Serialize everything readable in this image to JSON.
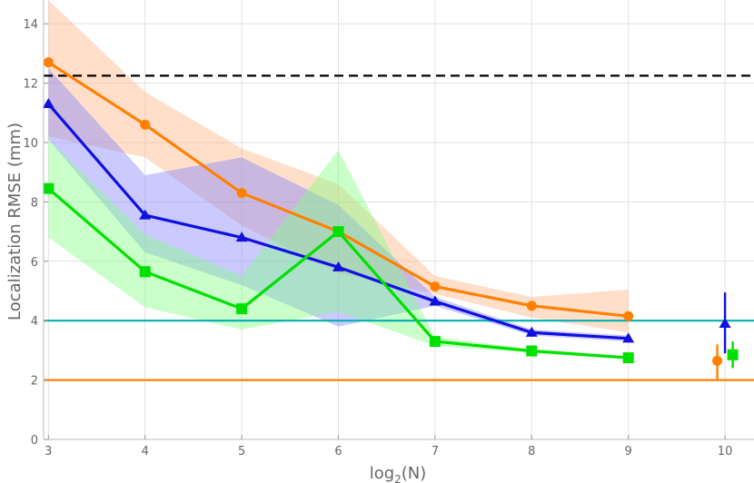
{
  "chart_data": {
    "type": "line",
    "xlabel": "log",
    "xlabel_subscript": "2",
    "xlabel_suffix": "(N)",
    "ylabel": "Localization RMSE (mm)",
    "xlim": [
      2.95,
      10.3
    ],
    "ylim": [
      0,
      14.8
    ],
    "xticks": [
      3,
      4,
      5,
      6,
      7,
      8,
      9,
      10
    ],
    "yticks": [
      0,
      2,
      4,
      6,
      8,
      10,
      12,
      14
    ],
    "grid": true,
    "series": [
      {
        "marker": "circle",
        "color": "#ff8000",
        "band_color": "#ffb380",
        "x": [
          3,
          4,
          5,
          6,
          7,
          8,
          9
        ],
        "y": [
          12.7,
          10.6,
          8.3,
          7.0,
          5.15,
          4.5,
          4.15
        ],
        "band_upper": [
          14.8,
          11.7,
          9.8,
          8.6,
          5.5,
          4.8,
          5.05
        ],
        "band_lower": [
          10.2,
          9.5,
          7.2,
          5.6,
          4.9,
          4.1,
          3.6
        ]
      },
      {
        "marker": "triangle",
        "color": "#1010e0",
        "band_color": "#8080ff",
        "x": [
          3,
          4,
          5,
          6,
          7,
          8,
          9
        ],
        "y": [
          11.3,
          7.55,
          6.8,
          5.8,
          4.65,
          3.6,
          3.4
        ],
        "band_upper": [
          12.5,
          8.9,
          9.5,
          7.9,
          4.8,
          3.7,
          3.5
        ],
        "band_lower": [
          10.1,
          6.3,
          5.2,
          3.8,
          4.5,
          3.5,
          3.3
        ]
      },
      {
        "marker": "square",
        "color": "#00e000",
        "band_color": "#80ff80",
        "x": [
          3,
          4,
          5,
          6,
          7,
          8,
          9
        ],
        "y": [
          8.45,
          5.65,
          4.4,
          7.0,
          3.3,
          2.98,
          2.75
        ],
        "band_upper": [
          10.1,
          6.9,
          5.5,
          9.75,
          3.45,
          3.05,
          2.8
        ],
        "band_lower": [
          6.8,
          4.45,
          3.7,
          4.3,
          3.15,
          2.9,
          2.7
        ]
      }
    ],
    "point_estimates": [
      {
        "marker": "circle",
        "color": "#ff8000",
        "x": 9.92,
        "y": 2.65,
        "err_low": 2.0,
        "err_high": 3.2
      },
      {
        "marker": "triangle",
        "color": "#1010e0",
        "x": 10.0,
        "y": 3.9,
        "err_low": 2.9,
        "err_high": 4.95
      },
      {
        "marker": "square",
        "color": "#00e000",
        "x": 10.08,
        "y": 2.85,
        "err_low": 2.4,
        "err_high": 3.3
      }
    ],
    "reference_lines": [
      {
        "y": 12.25,
        "color": "#000000",
        "style": "dashed"
      },
      {
        "y": 4.0,
        "color": "#00b0b0",
        "style": "solid"
      },
      {
        "y": 2.0,
        "color": "#ff8000",
        "style": "solid"
      }
    ]
  }
}
